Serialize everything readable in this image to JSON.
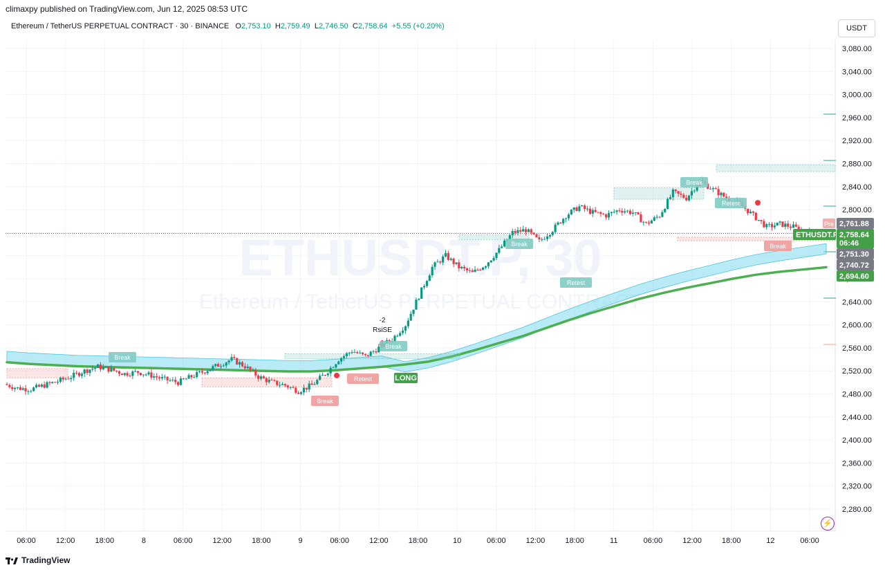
{
  "header": {
    "published": "climaxpy published on TradingView.com, Jun 12, 2025 08:53 UTC",
    "symbol": "Ethereum / TetherUS PERPETUAL CONTRACT · 30 · BINANCE",
    "o_label": "O",
    "o_value": "2,753.10",
    "h_label": "H",
    "h_value": "2,759.49",
    "l_label": "L",
    "l_value": "2,746.50",
    "c_label": "C",
    "c_value": "2,758.64",
    "change": "+5.55 (+0.20%)"
  },
  "currency": "USDT",
  "footer": {
    "brand": "TradingView"
  },
  "watermark": {
    "line1": "ETHUSDT.P, 30",
    "line2": "Ethereum / TetherUS PERPETUAL CONTRACT"
  },
  "colors": {
    "up": "#089981",
    "down": "#f23645",
    "ema": "#4caf50",
    "band": "#7fdbf0",
    "break_green": "#80cbc4",
    "break_red": "#ef9a9a"
  },
  "chart_data": {
    "type": "line",
    "ylim": [
      2250,
      3110
    ],
    "yticks": [
      "3,080.00",
      "3,040.00",
      "3,000.00",
      "2,960.00",
      "2,920.00",
      "2,880.00",
      "2,840.00",
      "2,800.00",
      "2,760.00",
      "2,720.00",
      "2,680.00",
      "2,640.00",
      "2,600.00",
      "2,560.00",
      "2,520.00",
      "2,480.00",
      "2,440.00",
      "2,400.00",
      "2,360.00",
      "2,320.00",
      "2,280.00"
    ],
    "xticks": [
      "06:00",
      "12:00",
      "18:00",
      "8",
      "06:00",
      "12:00",
      "18:00",
      "9",
      "06:00",
      "12:00",
      "18:00",
      "10",
      "06:00",
      "12:00",
      "18:00",
      "11",
      "06:00",
      "12:00",
      "18:00",
      "12",
      "06:00"
    ],
    "series": [
      {
        "values": [
          2497,
          2490,
          2488,
          2495,
          2502,
          2510,
          2520,
          2527,
          2522,
          2515,
          2518,
          2512,
          2505,
          2500,
          2510,
          2520,
          2530,
          2540,
          2528,
          2510,
          2500,
          2495,
          2485,
          2495,
          2515,
          2540,
          2555,
          2545,
          2560,
          2575,
          2600,
          2650,
          2700,
          2720,
          2700,
          2690,
          2705,
          2730,
          2760,
          2765,
          2745,
          2765,
          2790,
          2805,
          2795,
          2790,
          2800,
          2795,
          2775,
          2790,
          2830,
          2820,
          2850,
          2835,
          2820,
          2810,
          2790,
          2770,
          2775,
          2770,
          2760,
          2758
        ]
      },
      {
        "values": [
          2535,
          2532,
          2530,
          2528,
          2527,
          2526,
          2525,
          2524,
          2523,
          2522,
          2521,
          2520,
          2519,
          2519,
          2521,
          2524,
          2527,
          2531,
          2536,
          2545,
          2556,
          2568,
          2580,
          2594,
          2608,
          2621,
          2633,
          2645,
          2655,
          2664,
          2672,
          2680,
          2687,
          2692,
          2696,
          2700
        ]
      }
    ],
    "price_labels": [
      {
        "text": "2,761.88"
      },
      {
        "text": "ETHUSDT.P"
      },
      {
        "text": "2,758.64"
      },
      {
        "text": "06:46"
      },
      {
        "text": "2,751.30"
      },
      {
        "text": "2,740.72"
      },
      {
        "text": "2,694.60"
      }
    ],
    "annotations": [
      {
        "text": "Break"
      },
      {
        "text": "Break"
      },
      {
        "text": "Break"
      },
      {
        "text": "Break"
      },
      {
        "text": "Break"
      },
      {
        "text": "Break"
      },
      {
        "text": "Retest"
      },
      {
        "text": "Retest"
      },
      {
        "text": "Retest"
      },
      {
        "text": "LONG"
      },
      {
        "text": "-2"
      },
      {
        "text": "RsiSE"
      },
      {
        "text": "Pre"
      }
    ]
  }
}
